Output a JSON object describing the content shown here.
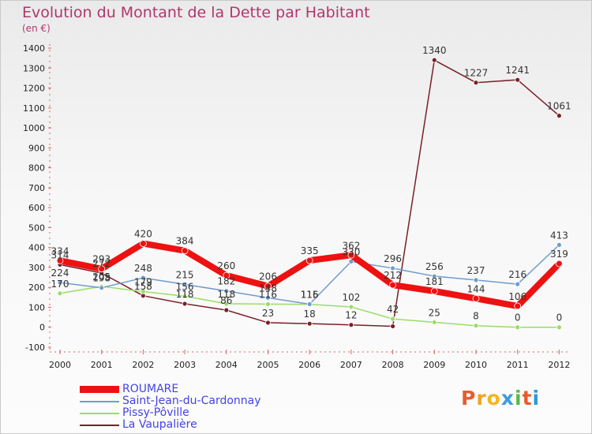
{
  "title": "Evolution du Montant de la Dette par Habitant",
  "subtitle": "(en €)",
  "logo": {
    "text": "Proxiti",
    "colors": [
      "#e85c2c",
      "#f4a21f",
      "#f6b51e",
      "#3b9be0",
      "#58b94c",
      "#e85c2c",
      "#2d9ad6"
    ]
  },
  "chart_data": {
    "type": "line",
    "title": "Evolution du Montant de la Dette par Habitant",
    "ylabel": "(en €)",
    "xlabel": "",
    "ylim": [
      -100,
      1400
    ],
    "yticks": [
      -100,
      0,
      100,
      200,
      300,
      400,
      500,
      600,
      700,
      800,
      900,
      1000,
      1100,
      1200,
      1300,
      1400
    ],
    "x": [
      "2000",
      "2001",
      "2002",
      "2003",
      "2004",
      "2005",
      "2006",
      "2007",
      "2008",
      "2009",
      "2010",
      "2011",
      "2012"
    ],
    "grid": false,
    "legend_position": "bottom-left",
    "series": [
      {
        "name": "ROUMARE",
        "color": "#ee1111",
        "values": [
          334,
          293,
          420,
          384,
          260,
          206,
          335,
          362,
          212,
          181,
          144,
          106,
          319
        ]
      },
      {
        "name": "Saint-Jean-du-Cardonnay",
        "color": "#6f9ccd",
        "values": [
          224,
          198,
          248,
          215,
          182,
          148,
          116,
          330,
          296,
          256,
          237,
          216,
          413
        ]
      },
      {
        "name": "Pissy-Pôville",
        "color": "#99dd66",
        "values": [
          170,
          205,
          179,
          156,
          118,
          116,
          115,
          102,
          42,
          25,
          8,
          0,
          0
        ]
      },
      {
        "name": "La Vaupalière",
        "color": "#7a1f28",
        "values": [
          314,
          272,
          158,
          118,
          86,
          23,
          18,
          12,
          5,
          1340,
          1227,
          1241,
          1061
        ]
      }
    ],
    "value_labels": [
      [
        "334",
        "293",
        "420",
        "384",
        "260",
        "206",
        "335",
        "362",
        "212",
        "181",
        "144",
        "106",
        "319"
      ],
      [
        "224",
        "198",
        "248",
        "215",
        "182",
        "148",
        "116",
        "330",
        "296",
        "256",
        "237",
        "216",
        "413"
      ],
      [
        "170",
        "205",
        "179",
        "156",
        "118",
        "116",
        "115",
        "102",
        "42",
        "25",
        "8",
        "0",
        "0"
      ],
      [
        "314",
        "272",
        "158",
        "118",
        "86",
        "23",
        "18",
        "12",
        "",
        "1340",
        "1227",
        "1241",
        "1061"
      ]
    ]
  }
}
